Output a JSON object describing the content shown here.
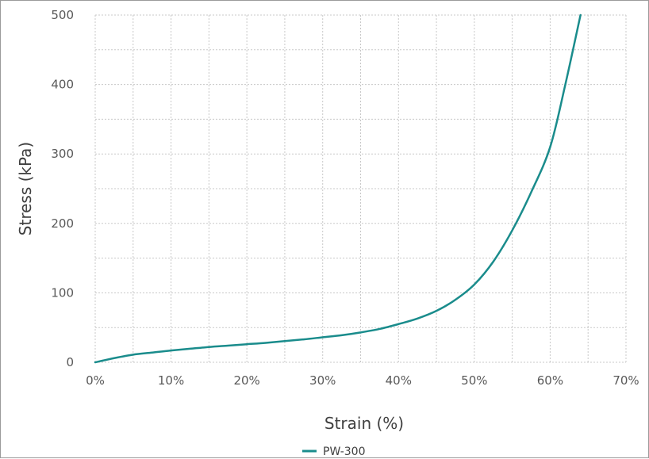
{
  "chart_data": {
    "type": "line",
    "xlabel": "Strain (%)",
    "ylabel": "Stress (kPa)",
    "xlim": [
      0,
      70
    ],
    "ylim": [
      0,
      500
    ],
    "x_ticks": [
      0,
      10,
      20,
      30,
      40,
      50,
      60,
      70
    ],
    "x_tick_labels": [
      "0%",
      "10%",
      "20%",
      "30%",
      "40%",
      "50%",
      "60%",
      "70%"
    ],
    "y_ticks": [
      0,
      100,
      200,
      300,
      400,
      500
    ],
    "y_tick_labels": [
      "0",
      "100",
      "200",
      "300",
      "400",
      "500"
    ],
    "grid": true,
    "legend_position": "bottom",
    "series": [
      {
        "name": "PW-300",
        "color": "#1a8c8c",
        "x": [
          0,
          2.5,
          5,
          7.5,
          10,
          12.5,
          15,
          17.5,
          20,
          22.5,
          25,
          27.5,
          30,
          32.5,
          35,
          37.5,
          40,
          42.5,
          45,
          47.5,
          50,
          52.5,
          55,
          57.5,
          60,
          62,
          64
        ],
        "y": [
          0,
          6,
          11,
          14,
          17,
          19.5,
          22,
          24,
          26,
          28,
          30.5,
          33,
          36,
          39,
          43,
          48,
          55,
          63,
          74,
          90,
          112,
          145,
          190,
          245,
          310,
          400,
          500
        ]
      }
    ]
  }
}
